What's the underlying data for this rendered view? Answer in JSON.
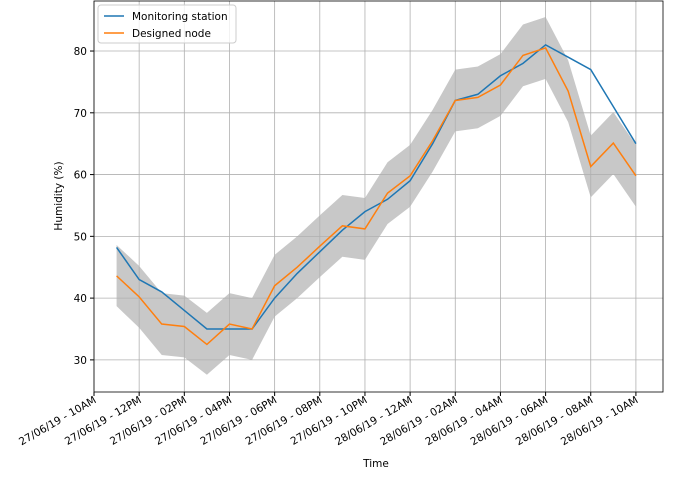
{
  "chart_data": {
    "type": "line",
    "xlabel": "Time",
    "ylabel": "Humidity (%)",
    "x": [
      1,
      2,
      3,
      4,
      5,
      6,
      7,
      8,
      9,
      10,
      11,
      12,
      13,
      14,
      15,
      16,
      17,
      18,
      19,
      20,
      21,
      22,
      23,
      24
    ],
    "series": [
      {
        "name": "Monitoring station",
        "color": "#1f77b4",
        "values": [
          48.2,
          43,
          41,
          38,
          35,
          35,
          35,
          40,
          44,
          47.5,
          51,
          54,
          56,
          59,
          65,
          72,
          73,
          76,
          78,
          81,
          79,
          77,
          71,
          65
        ]
      },
      {
        "name": "Designed node",
        "color": "#ff7f0e",
        "values": [
          43.6,
          40.2,
          35.8,
          35.4,
          32.5,
          35.8,
          35,
          42,
          45,
          48.4,
          51.7,
          51.2,
          57,
          59.8,
          65.5,
          72,
          72.5,
          74.5,
          79.3,
          80.5,
          73.5,
          61.3,
          65.1,
          59.8
        ]
      }
    ],
    "band": {
      "color": "#c8c8c8",
      "lower": [
        38.7,
        35.2,
        30.8,
        30.4,
        27.6,
        30.8,
        30,
        37,
        40,
        43.4,
        46.7,
        46.2,
        52,
        54.8,
        60.5,
        67,
        67.5,
        69.5,
        74.3,
        75.5,
        68.5,
        56.3,
        60.1,
        54.8
      ],
      "upper": [
        48.6,
        45.2,
        40.8,
        40.4,
        37.6,
        40.8,
        40,
        47,
        50,
        53.4,
        56.7,
        56.2,
        62,
        64.8,
        70.5,
        77,
        77.5,
        79.5,
        84.3,
        85.5,
        78.5,
        66.3,
        70.1,
        64.8
      ]
    },
    "xlim": [
      0,
      25.2
    ],
    "ylim": [
      24.8,
      88.1
    ],
    "yticks": [
      30,
      40,
      50,
      60,
      70,
      80
    ],
    "xticks": [
      {
        "value": 0,
        "label": "27/06/19 - 10AM"
      },
      {
        "value": 2,
        "label": "27/06/19 - 12PM"
      },
      {
        "value": 4,
        "label": "27/06/19 - 02PM"
      },
      {
        "value": 6,
        "label": "27/06/19 - 04PM"
      },
      {
        "value": 8,
        "label": "27/06/19 - 06PM"
      },
      {
        "value": 10,
        "label": "27/06/19 - 08PM"
      },
      {
        "value": 12,
        "label": "27/06/19 - 10PM"
      },
      {
        "value": 14,
        "label": "28/06/19 - 12AM"
      },
      {
        "value": 16,
        "label": "28/06/19 - 02AM"
      },
      {
        "value": 18,
        "label": "28/06/19 - 04AM"
      },
      {
        "value": 20,
        "label": "28/06/19 - 06AM"
      },
      {
        "value": 22,
        "label": "28/06/19 - 08AM"
      },
      {
        "value": 24,
        "label": "28/06/19 - 10AM"
      }
    ],
    "grid": true,
    "legend": "upper-left"
  }
}
